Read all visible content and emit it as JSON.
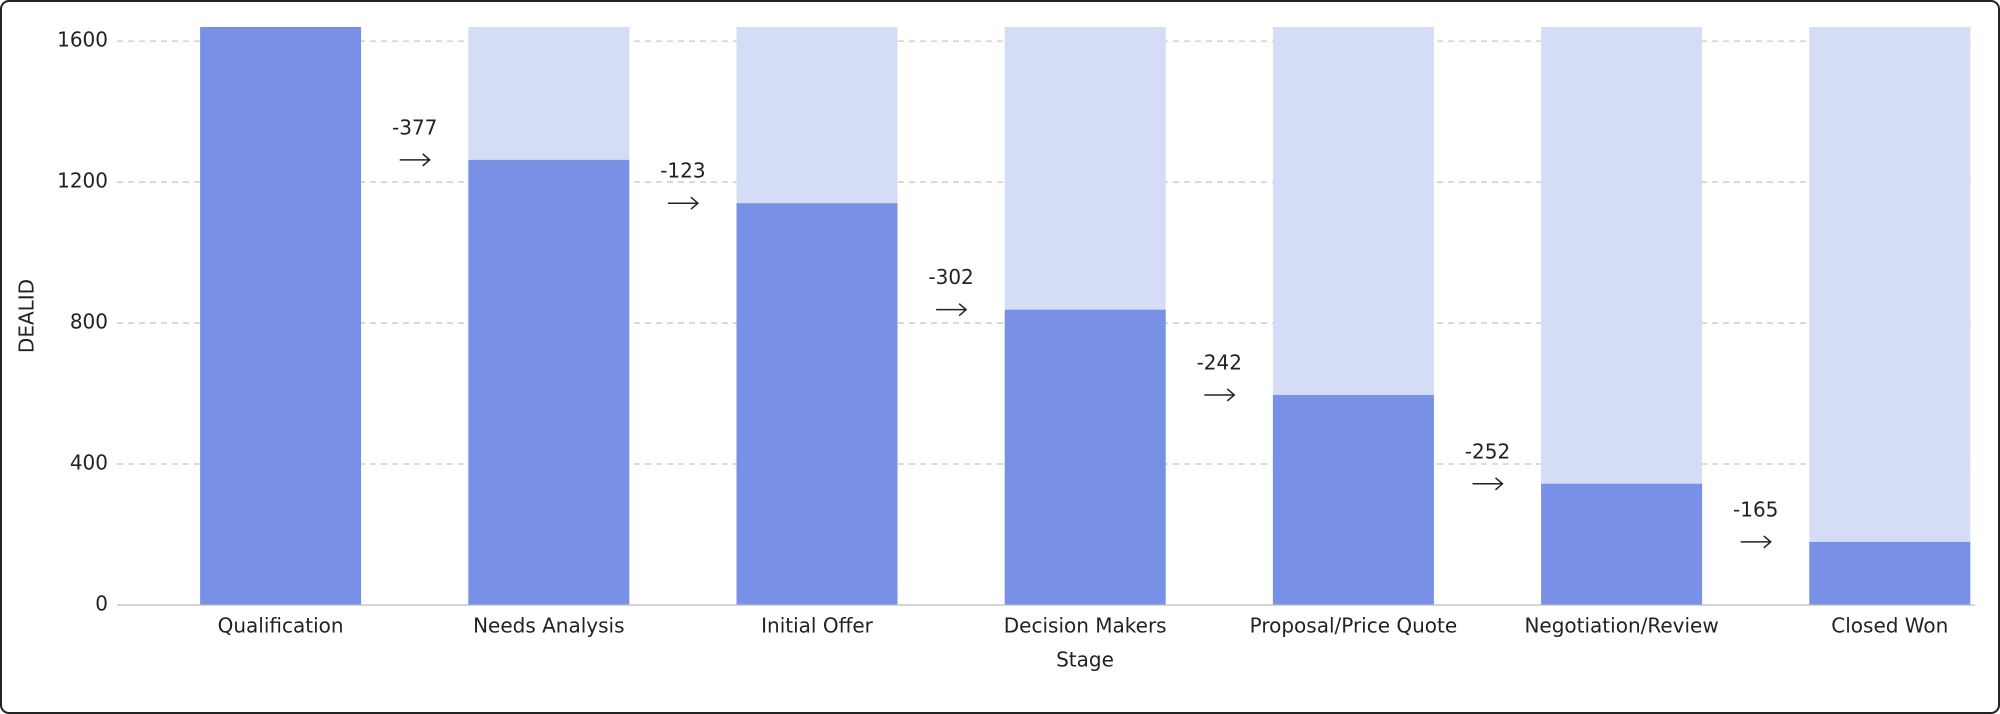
{
  "chart_data": {
    "type": "funnel-bar",
    "x_label": "Stage",
    "y_label": "DEALID",
    "categories": [
      "Qualification",
      "Needs Analysis",
      "Initial Offer",
      "Decision Makers",
      "Proposal/Price Quote",
      "Negotiation/Review",
      "Closed Won"
    ],
    "values": [
      1640,
      1263,
      1140,
      838,
      596,
      344,
      179
    ],
    "changes": [
      -377,
      -123,
      -302,
      -242,
      -252,
      -165
    ],
    "color": "#7891e6",
    "background_color": "#d5ddf6",
    "ylim": [
      0,
      1640
    ],
    "yticks": [
      0,
      400,
      800,
      1200,
      1600
    ],
    "grid": true
  }
}
